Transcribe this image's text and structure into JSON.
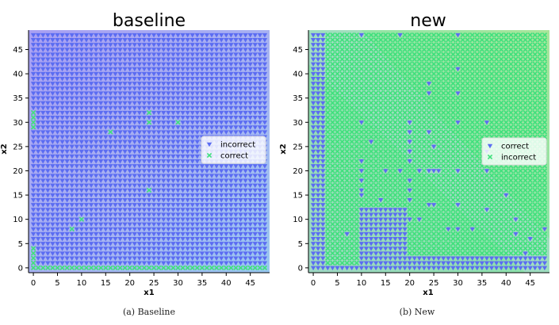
{
  "chart_data": [
    {
      "type": "scatter",
      "title": "baseline",
      "xlabel": "x1",
      "ylabel": "x2",
      "xlim": [
        -1,
        49
      ],
      "ylim": [
        -1,
        49
      ],
      "xticks": [
        "0",
        "5",
        "10",
        "15",
        "20",
        "25",
        "30",
        "35",
        "40",
        "45"
      ],
      "yticks": [
        "0",
        "5",
        "10",
        "15",
        "20",
        "25",
        "30",
        "35",
        "40",
        "45"
      ],
      "grid_step": 1,
      "legend_position": "center-right",
      "series": [
        {
          "name": "incorrect",
          "marker": "tri_down",
          "color": "#5b6cf2",
          "values": "all remaining grid points"
        },
        {
          "name": "correct",
          "marker": "x",
          "color": "#3fe07c",
          "points": [
            [
              0,
              32
            ],
            [
              0,
              31
            ],
            [
              0,
              30
            ],
            [
              0,
              29
            ],
            [
              0,
              4
            ],
            [
              0,
              3
            ],
            [
              0,
              2
            ],
            [
              0,
              1
            ],
            [
              0,
              0
            ],
            [
              8,
              8
            ],
            [
              10,
              10
            ],
            [
              16,
              28
            ],
            [
              24,
              32
            ],
            [
              24,
              30
            ],
            [
              24,
              16
            ],
            [
              30,
              30
            ],
            [
              1,
              0
            ],
            [
              2,
              0
            ],
            [
              3,
              0
            ],
            [
              4,
              0
            ],
            [
              5,
              0
            ],
            [
              6,
              0
            ],
            [
              7,
              0
            ],
            [
              8,
              0
            ],
            [
              9,
              0
            ],
            [
              10,
              0
            ],
            [
              11,
              0
            ],
            [
              12,
              0
            ],
            [
              13,
              0
            ],
            [
              14,
              0
            ],
            [
              15,
              0
            ],
            [
              16,
              0
            ],
            [
              17,
              0
            ],
            [
              18,
              0
            ],
            [
              19,
              0
            ],
            [
              20,
              0
            ],
            [
              21,
              0
            ],
            [
              22,
              0
            ],
            [
              23,
              0
            ],
            [
              24,
              0
            ],
            [
              25,
              0
            ],
            [
              26,
              0
            ],
            [
              27,
              0
            ],
            [
              28,
              0
            ],
            [
              29,
              0
            ],
            [
              30,
              0
            ],
            [
              31,
              0
            ],
            [
              32,
              0
            ],
            [
              33,
              0
            ],
            [
              34,
              0
            ],
            [
              35,
              0
            ],
            [
              36,
              0
            ],
            [
              37,
              0
            ],
            [
              38,
              0
            ],
            [
              39,
              0
            ],
            [
              40,
              0
            ],
            [
              41,
              0
            ],
            [
              42,
              0
            ],
            [
              43,
              0
            ],
            [
              44,
              0
            ],
            [
              45,
              0
            ],
            [
              46,
              0
            ],
            [
              47,
              0
            ],
            [
              48,
              0
            ]
          ]
        }
      ]
    },
    {
      "type": "scatter",
      "title": "new",
      "xlabel": "x1",
      "ylabel": "x2",
      "xlim": [
        -1,
        49
      ],
      "ylim": [
        -1,
        49
      ],
      "xticks": [
        "0",
        "5",
        "10",
        "15",
        "20",
        "25",
        "30",
        "35",
        "40",
        "45"
      ],
      "yticks": [
        "0",
        "5",
        "10",
        "15",
        "20",
        "25",
        "30",
        "35",
        "40",
        "45"
      ],
      "grid_step": 1,
      "legend_position": "center-right",
      "series": [
        {
          "name": "correct",
          "marker": "tri_down",
          "color": "#5b6cf2",
          "points": [
            [
              10,
              48
            ],
            [
              18,
              48
            ],
            [
              30,
              48
            ],
            [
              30,
              41
            ],
            [
              24,
              38
            ],
            [
              24,
              36
            ],
            [
              30,
              36
            ],
            [
              10,
              30
            ],
            [
              20,
              30
            ],
            [
              30,
              30
            ],
            [
              36,
              30
            ],
            [
              20,
              28
            ],
            [
              24,
              28
            ],
            [
              20,
              26
            ],
            [
              12,
              26
            ],
            [
              20,
              24
            ],
            [
              25,
              25
            ],
            [
              36,
              24
            ],
            [
              20,
              22
            ],
            [
              10,
              22
            ],
            [
              10,
              20
            ],
            [
              15,
              20
            ],
            [
              18,
              20
            ],
            [
              22,
              20
            ],
            [
              24,
              20
            ],
            [
              25,
              20
            ],
            [
              26,
              20
            ],
            [
              30,
              20
            ],
            [
              36,
              20
            ],
            [
              10,
              18
            ],
            [
              20,
              18
            ],
            [
              10,
              16
            ],
            [
              20,
              16
            ],
            [
              40,
              15
            ],
            [
              10,
              15
            ],
            [
              14,
              14
            ],
            [
              20,
              14
            ],
            [
              24,
              13
            ],
            [
              25,
              13
            ],
            [
              30,
              13
            ],
            [
              36,
              12
            ],
            [
              42,
              10
            ],
            [
              10,
              10
            ],
            [
              12,
              10
            ],
            [
              14,
              10
            ],
            [
              16,
              10
            ],
            [
              20,
              10
            ],
            [
              22,
              10
            ],
            [
              28,
              8
            ],
            [
              30,
              8
            ],
            [
              33,
              8
            ],
            [
              48,
              8
            ],
            [
              7,
              7
            ],
            [
              16,
              7
            ],
            [
              42,
              7
            ],
            [
              45,
              6
            ],
            [
              44,
              3
            ],
            [
              43,
              2
            ],
            [
              46,
              2
            ]
          ],
          "regions": [
            {
              "x": [
                0,
                2
              ],
              "y": [
                0,
                48
              ]
            },
            {
              "x": [
                10,
                19
              ],
              "y": [
                0,
                12
              ]
            },
            {
              "x": [
                19,
                48
              ],
              "y": [
                0,
                2
              ]
            },
            {
              "x": [
                0,
                48
              ],
              "y": [
                0,
                0
              ]
            }
          ]
        },
        {
          "name": "incorrect",
          "marker": "x",
          "color": "#3fe07c",
          "values": "all remaining grid points"
        }
      ]
    }
  ],
  "captions": {
    "left": "(a) Baseline",
    "right": "(b) New"
  }
}
